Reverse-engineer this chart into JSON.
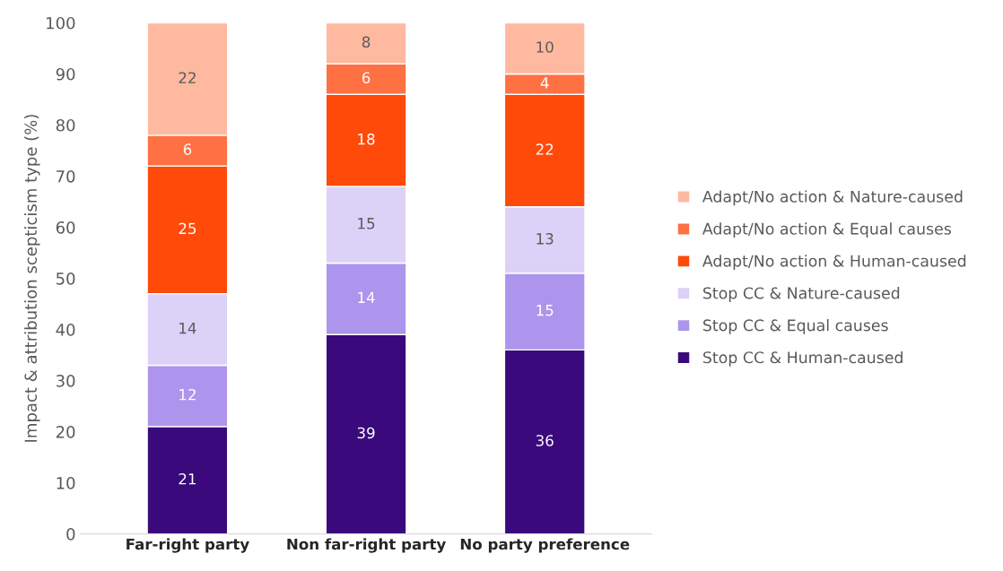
{
  "chart_data": {
    "type": "bar",
    "stacked": true,
    "ylabel": "Impact & attribution scepticism type (%)",
    "categories": [
      "Far-right party",
      "Non far-right party",
      "No party preference"
    ],
    "series": [
      {
        "name": "Stop CC & Human-caused",
        "color": "#3a0a7c",
        "values": [
          21,
          39,
          36
        ]
      },
      {
        "name": "Stop CC & Equal causes",
        "color": "#ad94ec",
        "values": [
          12,
          14,
          15
        ]
      },
      {
        "name": "Stop CC & Nature-caused",
        "color": "#dcd1f7",
        "values": [
          14,
          15,
          13
        ]
      },
      {
        "name": "Adapt/No action & Human-caused",
        "color": "#ff4a0a",
        "values": [
          25,
          18,
          22
        ]
      },
      {
        "name": "Adapt/No action & Equal causes",
        "color": "#ff7042",
        "values": [
          6,
          6,
          4
        ]
      },
      {
        "name": "Adapt/No action & Nature-caused",
        "color": "#ffb9a0",
        "values": [
          22,
          8,
          10
        ]
      }
    ],
    "ylim": [
      0,
      100
    ],
    "yticks": [
      0,
      10,
      20,
      30,
      40,
      50,
      60,
      70,
      80,
      90,
      100
    ],
    "data_labels": true,
    "legend": "right",
    "grid": false
  }
}
